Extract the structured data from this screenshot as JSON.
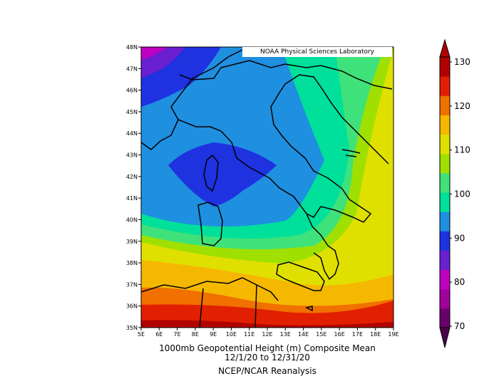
{
  "credit": "NOAA Physical Sciences Laboratory",
  "title_line1": "1000mb Geopotential Height (m) Composite Mean",
  "title_line2": "12/1/20  to 12/31/20",
  "source": "NCEP/NCAR Reanalysis",
  "map": {
    "lon_range": [
      5,
      19
    ],
    "lat_range": [
      35,
      48
    ],
    "lon_ticks": [
      "5E",
      "6E",
      "7E",
      "8E",
      "9E",
      "10E",
      "11E",
      "12E",
      "13E",
      "14E",
      "15E",
      "16E",
      "17E",
      "18E",
      "19E"
    ],
    "lat_ticks": [
      "48N",
      "47N",
      "46N",
      "45N",
      "44N",
      "43N",
      "42N",
      "41N",
      "40N",
      "39N",
      "38N",
      "37N",
      "36N",
      "35N"
    ],
    "field": "1000mb geopotential height (m)"
  },
  "colorbar": {
    "labels": [
      "130",
      "120",
      "110",
      "100",
      "90",
      "80",
      "70"
    ],
    "levels": [
      70,
      75,
      80,
      85,
      90,
      95,
      100,
      105,
      110,
      115,
      120,
      125,
      130
    ],
    "colors": [
      "#6a006a",
      "#a0009e",
      "#c000c0",
      "#6a1fd0",
      "#1e32e0",
      "#1f8fe0",
      "#00e09a",
      "#3fe27a",
      "#9fe000",
      "#e0e000",
      "#f5b800",
      "#f07000",
      "#e02000",
      "#b00000"
    ]
  }
}
